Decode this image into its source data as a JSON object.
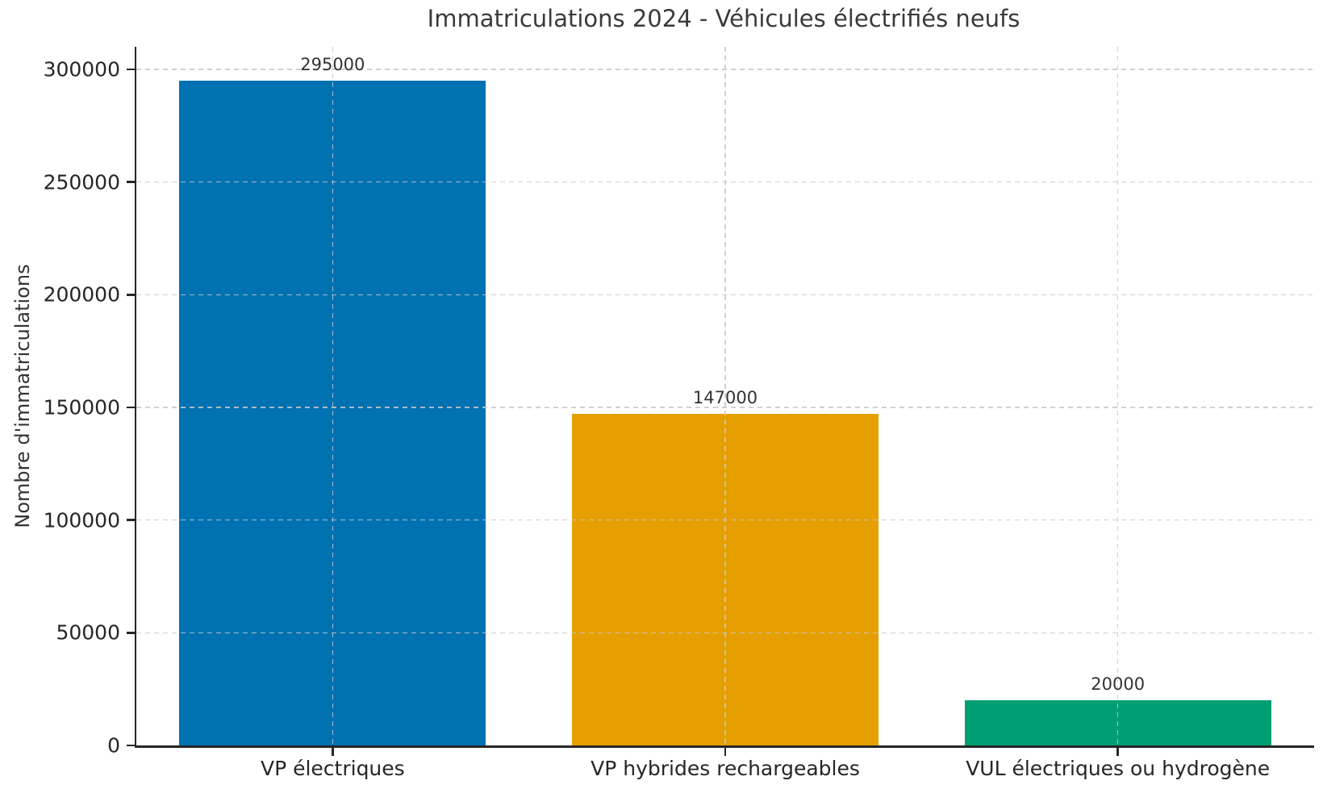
{
  "chart_data": {
    "type": "bar",
    "title": "Immatriculations 2024 - Véhicules électrifiés neufs",
    "xlabel": "",
    "ylabel": "Nombre d'immatriculations",
    "categories": [
      "VP électriques",
      "VP hybrides rechargeables",
      "VUL électriques ou hydrogène"
    ],
    "values": [
      295000,
      147000,
      20000
    ],
    "bar_value_labels": [
      "295000",
      "147000",
      "20000"
    ],
    "bar_colors": [
      "#0072B2",
      "#E69F00",
      "#009E73"
    ],
    "ylim": [
      0,
      300000
    ],
    "yticks": [
      0,
      50000,
      100000,
      150000,
      200000,
      250000,
      300000
    ],
    "ytick_labels": [
      "0",
      "50000",
      "100000",
      "150000",
      "200000",
      "250000",
      "300000"
    ],
    "grid": {
      "style": "dashed",
      "color": "#c8c8c8",
      "horizontal": true,
      "vertical": true
    },
    "legend_position": "none",
    "axis_color": "#262626",
    "text_color": "#333333"
  }
}
